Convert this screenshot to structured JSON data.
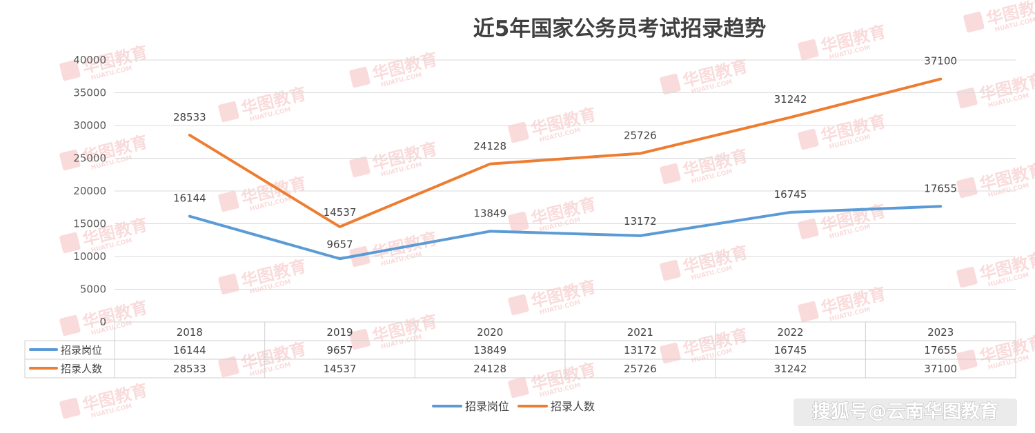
{
  "credit": "搜狐号@云南华图教育",
  "watermark": {
    "brand": "华图教育",
    "site": "HUATU.COM"
  },
  "colors": {
    "posts": "#5b9bd5",
    "people": "#ed7d31",
    "grid": "#d9d9d9",
    "text": "#404040"
  },
  "chart_data": {
    "type": "line",
    "title": "近5年国家公务员考试招录趋势",
    "categories": [
      "2018",
      "2019",
      "2020",
      "2021",
      "2022",
      "2023"
    ],
    "series": [
      {
        "name": "招录岗位",
        "values": [
          16144,
          9657,
          13849,
          13172,
          16745,
          17655
        ],
        "color": "#5b9bd5"
      },
      {
        "name": "招录人数",
        "values": [
          28533,
          14537,
          24128,
          25726,
          31242,
          37100
        ],
        "color": "#ed7d31"
      }
    ],
    "ylim": [
      0,
      40000
    ],
    "yticks": [
      0,
      5000,
      10000,
      15000,
      20000,
      25000,
      30000,
      35000,
      40000
    ],
    "grid": true,
    "legend": "bottom",
    "data_table": true
  }
}
